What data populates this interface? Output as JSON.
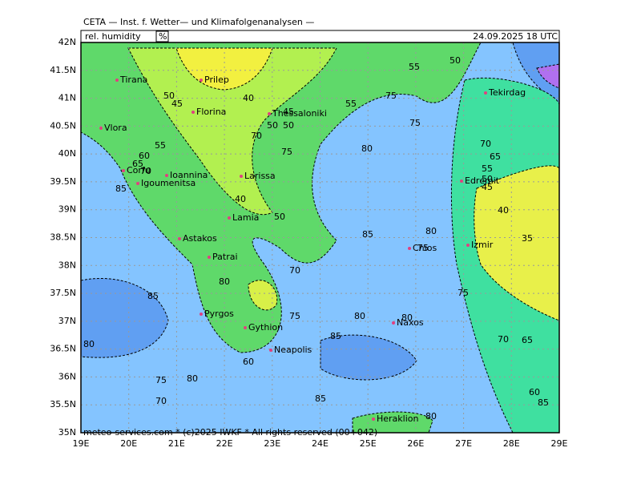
{
  "header": {
    "title": "CETA — Inst. f. Wetter— und Klimafolgenanalysen —",
    "field": "rel. humidity",
    "unit": "%",
    "valid": "24.09.2025 18 UTC"
  },
  "footer": "meteo-services.com * (c)2025 IWKF * All rights reserved (00+042)",
  "lat_labels": [
    "42N",
    "41.5N",
    "41N",
    "40.5N",
    "40N",
    "39.5N",
    "39N",
    "38.5N",
    "38N",
    "37.5N",
    "37N",
    "36.5N",
    "36N",
    "35.5N",
    "35N"
  ],
  "lon_labels": [
    "19E",
    "20E",
    "21E",
    "22E",
    "23E",
    "24E",
    "25E",
    "26E",
    "27E",
    "28E",
    "29E"
  ],
  "cities": [
    "Tirana",
    "Prilep",
    "Florina",
    "Thessaloniki",
    "Vlora",
    "Corfu",
    "Ioannina",
    "Igoumenitsa",
    "Larissa",
    "Lamia",
    "Astakos",
    "Patrai",
    "Pyrgos",
    "Gythion",
    "Neapolis",
    "Naxos",
    "Heraklion",
    "Izmir",
    "Edremit",
    "Tekirdag",
    "Chios"
  ],
  "contour_labels": [
    50,
    45,
    40,
    45,
    50,
    50,
    70,
    75,
    80,
    55,
    50,
    55,
    75,
    75,
    55,
    60,
    65,
    70,
    85,
    40,
    50,
    85,
    80,
    75,
    70,
    80,
    85,
    75,
    80,
    80,
    85,
    80,
    75,
    80,
    70,
    85,
    80,
    75,
    70,
    65,
    55,
    50,
    45,
    40,
    35,
    60,
    65,
    85,
    70,
    60
  ]
}
